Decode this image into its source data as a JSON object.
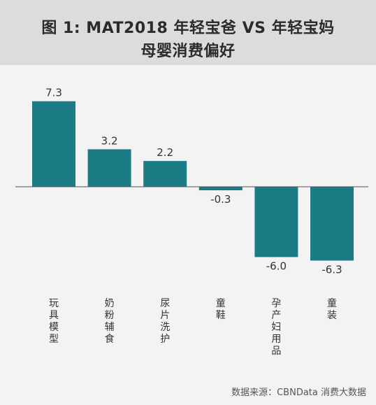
{
  "chart_data": {
    "type": "bar",
    "title_line1": "图 1: MAT2018 年轻宝爸 VS 年轻宝妈",
    "title_line2": "母婴消费偏好",
    "categories": [
      "玩具模型",
      "奶粉辅食",
      "尿片洗护",
      "童鞋",
      "孕产妇用品",
      "童装"
    ],
    "values": [
      7.3,
      3.2,
      2.2,
      -0.3,
      -6.0,
      -6.3
    ],
    "value_labels": [
      "7.3",
      "3.2",
      "2.2",
      "-0.3",
      "-6.0",
      "-6.3"
    ],
    "xlabel": "",
    "ylabel": "",
    "ylim": [
      -7.0,
      8.8
    ],
    "grid": false,
    "bar_color": "#1b7c85",
    "axis_color": "#555555"
  },
  "source": "数据来源：CBNData 消费大数据"
}
